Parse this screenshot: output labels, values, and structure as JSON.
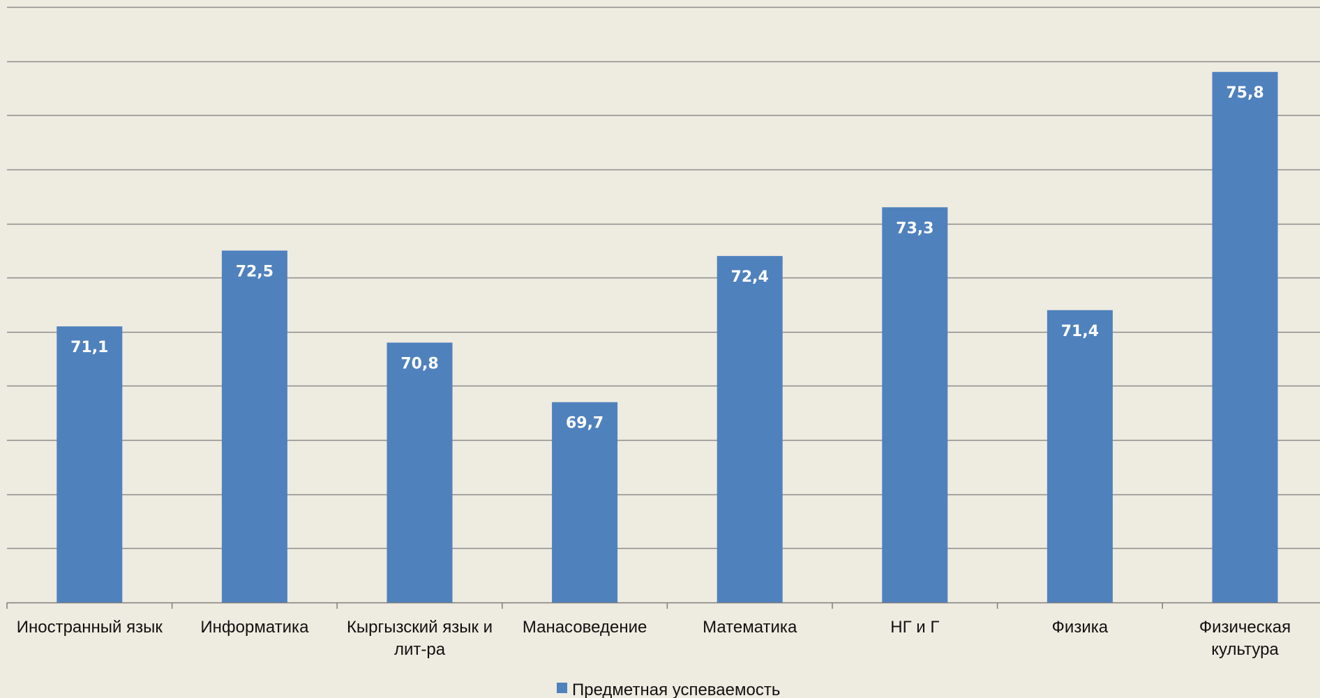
{
  "chart_data": {
    "type": "bar",
    "categories": [
      [
        "Иностранный язык"
      ],
      [
        "Информатика"
      ],
      [
        "Кыргызский язык и",
        "лит-ра"
      ],
      [
        "Манасоведение"
      ],
      [
        "Математика"
      ],
      [
        "НГ и Г"
      ],
      [
        "Физика"
      ],
      [
        "Физическая",
        "культура"
      ]
    ],
    "series": [
      {
        "name": "Предметная успеваемость",
        "values": [
          71.1,
          72.5,
          70.8,
          69.7,
          72.4,
          73.3,
          71.4,
          75.8
        ],
        "labels": [
          "71,1",
          "72,5",
          "70,8",
          "69,7",
          "72,4",
          "73,3",
          "71,4",
          "75,8"
        ]
      }
    ],
    "ylim": [
      66,
      77
    ],
    "y_gridline_step": 1,
    "y_tick_labels_shown": false,
    "grid": true,
    "legend_position": "bottom",
    "title": "",
    "xlabel": "",
    "ylabel": ""
  },
  "colors": {
    "background": "#EEEBE0",
    "bar": "#4F81BD",
    "gridline": "#8C8C8C",
    "axis": "#7F7F7F"
  }
}
